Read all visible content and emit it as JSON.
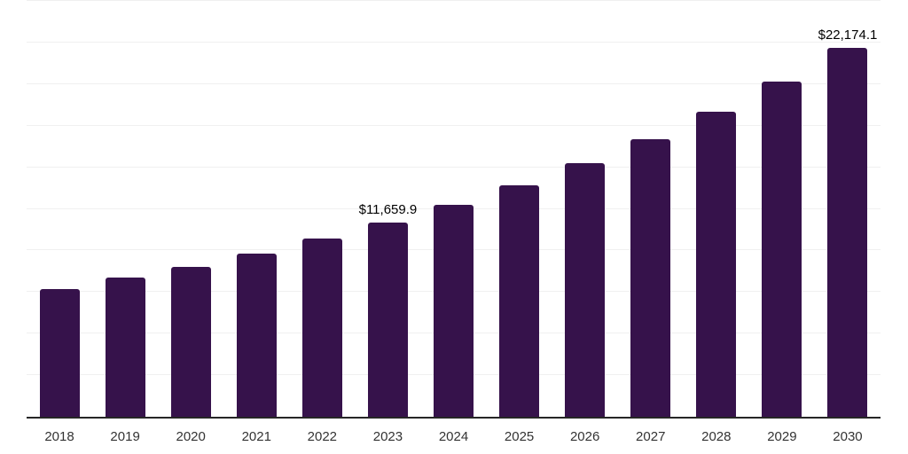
{
  "chart_data": {
    "type": "bar",
    "title": "",
    "xlabel": "",
    "ylabel": "",
    "categories": [
      "2018",
      "2019",
      "2020",
      "2021",
      "2022",
      "2023",
      "2024",
      "2025",
      "2026",
      "2027",
      "2028",
      "2029",
      "2030"
    ],
    "values": [
      7675,
      8350,
      9000,
      9810,
      10715,
      11659.9,
      12755,
      13895,
      15245,
      16700,
      18335,
      20165,
      22174.1
    ],
    "data_labels": {
      "2023": "$11,659.9",
      "2030": "$22,174.1"
    },
    "ylim": [
      0,
      25000
    ],
    "gridline_interval": 2500,
    "grid": true,
    "legend": false,
    "y_axis_labels_visible": false,
    "colors": {
      "bar": "#36124B",
      "axis_line": "#262626",
      "gridline": "#f0f0f0",
      "tick_label": "#333333",
      "data_label": "#000000",
      "background": "#ffffff"
    }
  }
}
